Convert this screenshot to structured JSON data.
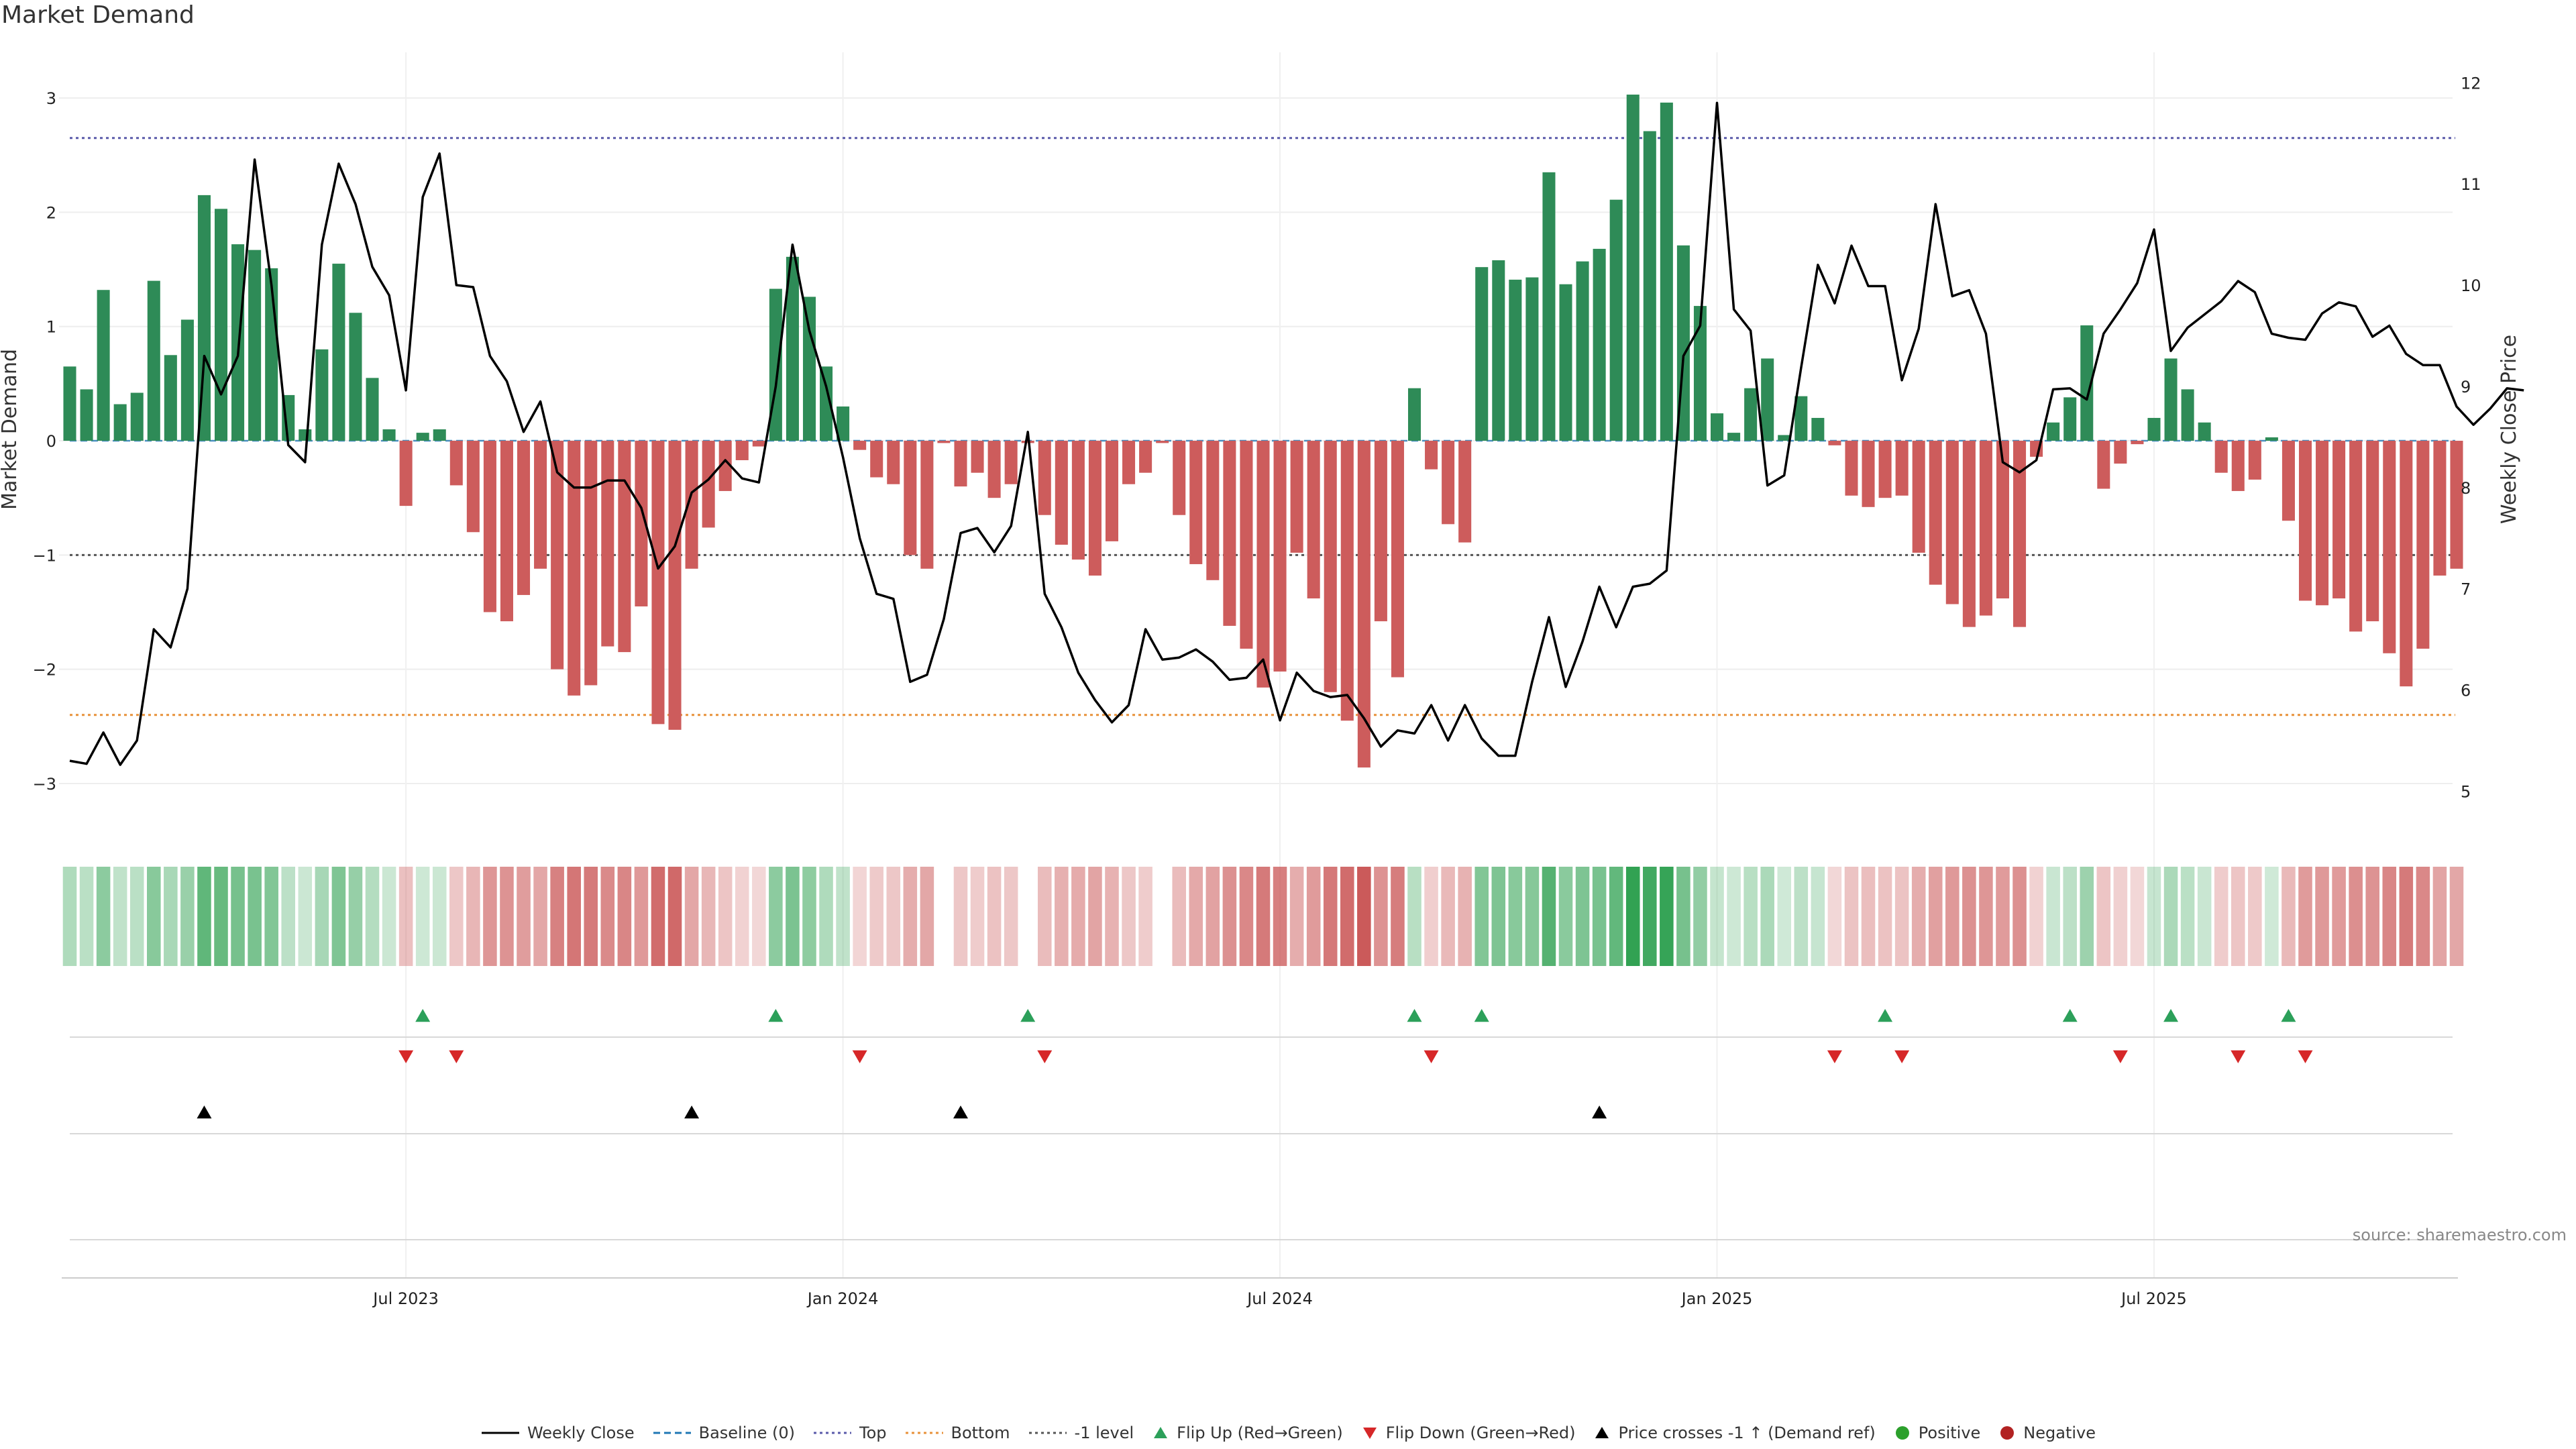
{
  "title": "Market Demand",
  "source": "source: sharemaestro.com",
  "colors": {
    "positive_bar": "#2e8b57",
    "negative_bar": "#cd5c5c",
    "price_line": "#000000",
    "top_line": "#5a5aaa",
    "bottom_line": "#e8923a",
    "minus1_line": "#555555",
    "baseline": "#1f77b4",
    "flip_up": "#2ca05a",
    "flip_down": "#d62728",
    "cross": "#000000",
    "positive_dot": "#2ca02c",
    "negative_dot": "#b22222"
  },
  "chart_data": {
    "type": "bar",
    "title": "Market Demand",
    "ylabel_left": "Market Demand",
    "ylabel_right": "Weekly Close Price",
    "ylim_left": [
      -3.2,
      3.4
    ],
    "ylim_right": [
      4.85,
      12.3
    ],
    "yticks_left": [
      -3,
      -2,
      -1,
      0,
      1,
      2,
      3
    ],
    "yticks_right": [
      5,
      6,
      7,
      8,
      9,
      10,
      11,
      12
    ],
    "x_tick_labels": [
      {
        "week": 20,
        "label": "Jul 2023"
      },
      {
        "week": 46,
        "label": "Jan 2024"
      },
      {
        "week": 72,
        "label": "Jul 2024"
      },
      {
        "week": 98,
        "label": "Jan 2025"
      },
      {
        "week": 124,
        "label": "Jul 2025"
      }
    ],
    "reference_lines": {
      "top": 2.65,
      "bottom": -2.4,
      "minus_one": -1.0,
      "baseline": 0
    },
    "demand": [
      0.65,
      0.45,
      1.32,
      0.32,
      0.42,
      1.4,
      0.75,
      1.06,
      2.15,
      2.03,
      1.72,
      1.67,
      1.51,
      0.4,
      0.1,
      0.8,
      1.55,
      1.12,
      0.55,
      0.1,
      -0.57,
      0.07,
      0.1,
      -0.39,
      -0.8,
      -1.5,
      -1.58,
      -1.35,
      -1.12,
      -2.0,
      -2.23,
      -2.14,
      -1.8,
      -1.85,
      -1.45,
      -2.48,
      -2.53,
      -1.12,
      -0.76,
      -0.44,
      -0.17,
      -0.05,
      1.33,
      1.61,
      1.26,
      0.65,
      0.3,
      -0.08,
      -0.32,
      -0.38,
      -1.0,
      -1.12,
      -0.02,
      -0.4,
      -0.28,
      -0.5,
      -0.38,
      -0.02,
      -0.65,
      -0.91,
      -1.04,
      -1.18,
      -0.88,
      -0.38,
      -0.28,
      -0.02,
      -0.65,
      -1.08,
      -1.22,
      -1.62,
      -1.82,
      -2.16,
      -2.02,
      -0.98,
      -1.38,
      -2.2,
      -2.45,
      -2.86,
      -1.58,
      -2.07,
      0.46,
      -0.25,
      -0.73,
      -0.89,
      1.52,
      1.58,
      1.41,
      1.43,
      2.35,
      1.37,
      1.57,
      1.68,
      2.11,
      3.03,
      2.71,
      2.96,
      1.71,
      1.18,
      0.24,
      0.07,
      0.46,
      0.72,
      0.05,
      0.39,
      0.2,
      -0.04,
      -0.48,
      -0.58,
      -0.5,
      -0.48,
      -0.98,
      -1.26,
      -1.43,
      -1.63,
      -1.53,
      -1.38,
      -1.63,
      -0.14,
      0.16,
      0.38,
      1.01,
      -0.42,
      -0.2,
      -0.03,
      0.2,
      0.72,
      0.45,
      0.16,
      -0.28,
      -0.44,
      -0.34,
      0.03,
      -0.7,
      -1.4,
      -1.44,
      -1.38,
      -1.67,
      -1.58,
      -1.86,
      -2.15,
      -1.82,
      -1.18,
      -1.12
    ],
    "price": [
      5.3,
      5.27,
      5.58,
      5.26,
      5.5,
      6.6,
      6.42,
      7.0,
      9.3,
      8.92,
      9.3,
      11.24,
      10.0,
      8.42,
      8.25,
      10.4,
      11.2,
      10.8,
      10.18,
      9.9,
      8.96,
      10.87,
      11.3,
      10.0,
      9.98,
      9.3,
      9.05,
      8.55,
      8.85,
      8.15,
      8.0,
      8.0,
      8.07,
      8.07,
      7.8,
      7.2,
      7.42,
      7.95,
      8.08,
      8.27,
      8.09,
      8.05,
      9.0,
      10.4,
      9.55,
      9.0,
      8.3,
      7.5,
      6.95,
      6.9,
      6.08,
      6.15,
      6.7,
      7.55,
      7.6,
      7.36,
      7.62,
      8.55,
      6.95,
      6.62,
      6.17,
      5.9,
      5.68,
      5.85,
      6.6,
      6.3,
      6.32,
      6.4,
      6.28,
      6.1,
      6.12,
      6.3,
      5.7,
      6.17,
      5.99,
      5.93,
      5.95,
      5.72,
      5.44,
      5.6,
      5.57,
      5.85,
      5.5,
      5.85,
      5.52,
      5.35,
      5.35,
      6.08,
      6.72,
      6.03,
      6.48,
      7.02,
      6.62,
      7.02,
      7.05,
      7.18,
      9.3,
      9.6,
      11.8,
      9.76,
      9.55,
      8.02,
      8.12,
      9.18,
      10.2,
      9.82,
      10.39,
      9.99,
      9.99,
      9.06,
      9.57,
      10.8,
      9.89,
      9.95,
      9.52,
      8.25,
      8.15,
      8.27,
      8.97,
      8.98,
      8.87,
      9.52,
      9.76,
      10.02,
      10.55,
      9.35,
      9.58,
      9.71,
      9.84,
      10.04,
      9.93,
      9.52,
      9.48,
      9.46,
      9.72,
      9.83,
      9.79,
      9.49,
      9.6,
      9.32,
      9.21,
      9.21,
      8.8,
      8.62,
      8.78,
      8.98,
      8.96
    ],
    "flip_up_weeks": [
      21,
      42,
      57,
      80,
      84,
      108,
      119,
      125,
      132
    ],
    "flip_down_weeks": [
      20,
      23,
      47,
      58,
      81,
      105,
      109,
      122,
      129,
      133
    ],
    "cross_weeks": [
      8,
      37,
      53,
      91
    ],
    "legend": [
      {
        "label": "Weekly Close",
        "kind": "line-solid",
        "color": "#000000"
      },
      {
        "label": "Baseline (0)",
        "kind": "line-dash",
        "color": "#1f77b4"
      },
      {
        "label": "Top",
        "kind": "line-dot",
        "color": "#5a5aaa"
      },
      {
        "label": "Bottom",
        "kind": "line-dot",
        "color": "#e8923a"
      },
      {
        "label": "-1 level",
        "kind": "line-dot",
        "color": "#555555"
      },
      {
        "label": "Flip Up (Red→Green)",
        "kind": "tri-up",
        "color": "#2ca05a"
      },
      {
        "label": "Flip Down (Green→Red)",
        "kind": "tri-down",
        "color": "#d62728"
      },
      {
        "label": "Price crosses -1 ↑ (Demand ref)",
        "kind": "tri-up",
        "color": "#000000"
      },
      {
        "label": "Positive",
        "kind": "dot",
        "color": "#2ca02c"
      },
      {
        "label": "Negative",
        "kind": "dot",
        "color": "#b22222"
      }
    ]
  }
}
